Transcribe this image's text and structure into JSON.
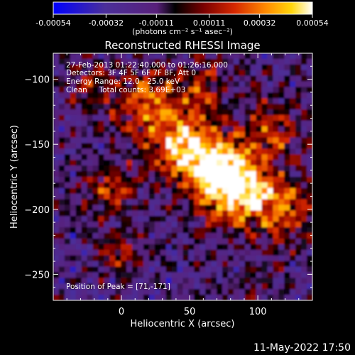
{
  "colorbar": {
    "tick_labels": [
      "-0.00054",
      "-0.00032",
      "-0.00011",
      "0.00011",
      "0.00032",
      "0.00054"
    ],
    "tick_values": [
      -0.00054,
      -0.00032,
      -0.00011,
      0.00011,
      0.00032,
      0.00054
    ],
    "range": [
      -0.00054,
      0.00054
    ],
    "units_label": "(photons cm⁻² s⁻¹ asec⁻²)"
  },
  "chart_data": {
    "type": "heatmap",
    "title": "Reconstructed RHESSI Image",
    "xlabel": "Heliocentric X (arcsec)",
    "ylabel": "Heliocentric Y (arcsec)",
    "xlim": [
      -50,
      140
    ],
    "ylim": [
      -270,
      -80
    ],
    "xticks": [
      0,
      50,
      100
    ],
    "yticks": [
      -100,
      -150,
      -200,
      -250
    ],
    "xtick_labels": [
      "0",
      "50",
      "100"
    ],
    "ytick_labels": [
      "−100",
      "−150",
      "−200",
      "−250"
    ],
    "colormap": [
      "#0000ff",
      "#4b2f9a",
      "#58207a",
      "#000000",
      "#7a0000",
      "#d62800",
      "#ff8a00",
      "#ffd60a",
      "#ffffff"
    ],
    "peak_xy": [
      71,
      -171
    ],
    "annotations": [
      "27-Feb-2013 01:22:40.000 to 01:26:16.000",
      "Detectors: 3F 4F 5F 6F 7F 8F, Att 0",
      "Energy Range: 12.0 - 25.0 keV",
      "Clean     Total counts: 3.69E+03",
      "Position of Peak = [71,-171]"
    ]
  },
  "footer": {
    "date": "11-May-2022 17:50"
  }
}
